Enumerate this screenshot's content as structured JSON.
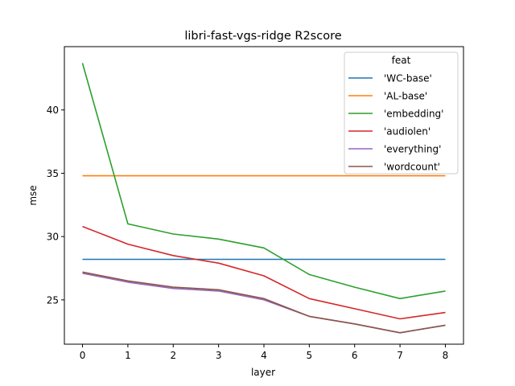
{
  "chart_data": {
    "type": "line",
    "title": "libri-fast-vgs-ridge R2score",
    "xlabel": "layer",
    "ylabel": "mse",
    "x": [
      0,
      1,
      2,
      3,
      4,
      5,
      6,
      7,
      8
    ],
    "xticks": [
      "0",
      "1",
      "2",
      "3",
      "4",
      "5",
      "6",
      "7",
      "8"
    ],
    "yticks": [
      25,
      30,
      35,
      40
    ],
    "xlim": [
      -0.4,
      8.4
    ],
    "ylim": [
      21.5,
      45.0
    ],
    "grid": false,
    "legend": {
      "title": "feat",
      "placement": "upper-right"
    },
    "series": [
      {
        "name": "'WC-base'",
        "color": "#1f77b4",
        "values": [
          28.2,
          28.2,
          28.2,
          28.2,
          28.2,
          28.2,
          28.2,
          28.2,
          28.2
        ]
      },
      {
        "name": "'AL-base'",
        "color": "#ff7f0e",
        "values": [
          34.8,
          34.8,
          34.8,
          34.8,
          34.8,
          34.8,
          34.8,
          34.8,
          34.8
        ]
      },
      {
        "name": "'embedding'",
        "color": "#2ca02c",
        "values": [
          43.7,
          31.0,
          30.2,
          29.8,
          29.1,
          27.0,
          26.0,
          25.1,
          25.7
        ]
      },
      {
        "name": "'audiolen'",
        "color": "#d62728",
        "values": [
          30.8,
          29.4,
          28.5,
          27.9,
          26.9,
          25.1,
          24.3,
          23.5,
          24.0
        ]
      },
      {
        "name": "'everything'",
        "color": "#9467bd",
        "values": [
          27.1,
          26.4,
          25.9,
          25.7,
          25.0,
          23.7,
          23.1,
          22.4,
          23.0
        ]
      },
      {
        "name": "'wordcount'",
        "color": "#8c564b",
        "values": [
          27.2,
          26.5,
          26.0,
          25.8,
          25.1,
          23.7,
          23.1,
          22.4,
          23.0
        ]
      }
    ]
  }
}
